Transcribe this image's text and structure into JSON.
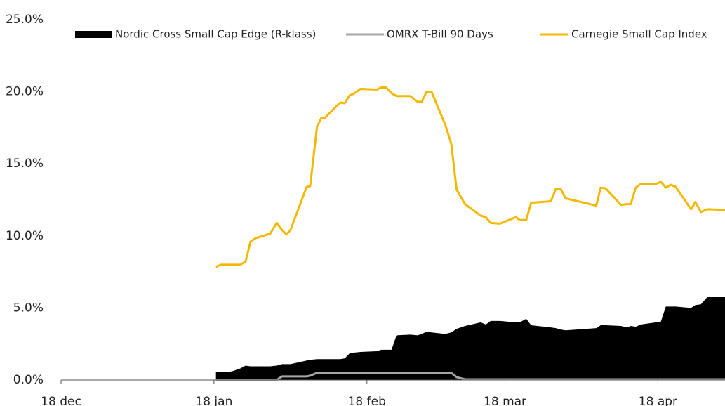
{
  "chart_data": {
    "type": "line",
    "legend": "top",
    "x": [
      31.4,
      32.4,
      34.6,
      36.3,
      37.4,
      38.4,
      39.5,
      42.4,
      43.7,
      44.8,
      45.7,
      46.5,
      49.8,
      50.5,
      51.9,
      52.8,
      53.5,
      56.6,
      57.5,
      58.5,
      59.3,
      60.7,
      64.0,
      64.9,
      65.9,
      67.0,
      68.0,
      70.8,
      72.3,
      73.1,
      74.1,
      75.1,
      77.9,
      79.1,
      80.2,
      81.9,
      85.1,
      86.1,
      87.1,
      89.0,
      92.2,
      93.0,
      94.3,
      95.3,
      99.3,
      100.3,
      101.3,
      102.3,
      108.5,
      109.4,
      110.4,
      113.5,
      114.7,
      115.5,
      116.5,
      117.5,
      120.6,
      121.6,
      122.6,
      123.6,
      124.6,
      127.7,
      128.6,
      129.7,
      131.0,
      134.6
    ],
    "series": [
      {
        "name": "Nordic Cross Small Cap Edge (R-klass)",
        "color": "#000000",
        "style": "area",
        "values": [
          0.55,
          0.55,
          0.6,
          0.8,
          1.0,
          0.95,
          0.95,
          0.95,
          1.0,
          1.1,
          1.1,
          1.1,
          1.35,
          1.4,
          1.45,
          1.45,
          1.45,
          1.45,
          1.5,
          1.85,
          1.9,
          1.95,
          2.0,
          2.1,
          2.1,
          2.1,
          3.1,
          3.15,
          3.1,
          3.2,
          3.35,
          3.3,
          3.2,
          3.3,
          3.55,
          3.75,
          4.0,
          3.85,
          4.1,
          4.1,
          4.0,
          4.0,
          4.25,
          3.8,
          3.65,
          3.6,
          3.5,
          3.45,
          3.6,
          3.8,
          3.8,
          3.75,
          3.65,
          3.75,
          3.7,
          3.85,
          4.0,
          4.05,
          5.1,
          5.1,
          5.1,
          5.0,
          5.2,
          5.25,
          5.75,
          5.75
        ]
      },
      {
        "name": "OMRX T-Bill 90 Days",
        "color": "#a6a6a6",
        "style": "line",
        "values": [
          0,
          0,
          0,
          0,
          0,
          0,
          0,
          0,
          0,
          0.25,
          0.25,
          0.25,
          0.25,
          0.3,
          0.5,
          0.5,
          0.5,
          0.5,
          0.5,
          0.5,
          0.5,
          0.5,
          0.5,
          0.5,
          0.5,
          0.5,
          0.5,
          0.5,
          0.5,
          0.5,
          0.5,
          0.5,
          0.5,
          0.5,
          0.2,
          0.05,
          0.05,
          0.05,
          0.05,
          0.05,
          0.05,
          0.05,
          0.05,
          0.05,
          0.05,
          0.05,
          0.05,
          0.05,
          0.05,
          0.05,
          0.05,
          0.05,
          0.05,
          0.05,
          0.05,
          0.05,
          0.05,
          0.05,
          0.05,
          0.05,
          0.05,
          0.05,
          0.05,
          0.05,
          0.05,
          0.05
        ]
      },
      {
        "name": "Carnegie Small Cap Index",
        "color": "#f5b800",
        "style": "line",
        "values": [
          7.85,
          8.0,
          8.0,
          8.0,
          8.2,
          9.6,
          9.85,
          10.15,
          10.9,
          10.4,
          10.1,
          10.4,
          13.4,
          13.45,
          17.6,
          18.2,
          18.2,
          19.25,
          19.2,
          19.75,
          19.85,
          20.2,
          20.15,
          20.3,
          20.3,
          19.9,
          19.7,
          19.7,
          19.3,
          19.3,
          20.0,
          20.0,
          17.7,
          16.4,
          13.2,
          12.2,
          11.4,
          11.3,
          10.9,
          10.85,
          11.3,
          11.1,
          11.1,
          12.3,
          12.4,
          13.25,
          13.25,
          12.6,
          12.1,
          13.35,
          13.3,
          12.15,
          12.2,
          12.2,
          13.35,
          13.6,
          13.6,
          13.75,
          13.35,
          13.55,
          13.4,
          11.85,
          12.35,
          11.65,
          11.85,
          11.8
        ]
      }
    ],
    "xlim": [
      0,
      134.6
    ],
    "xticks": [
      {
        "value": 0,
        "label": "18 dec"
      },
      {
        "value": 31,
        "label": "18 jan"
      },
      {
        "value": 62,
        "label": "18 feb"
      },
      {
        "value": 90,
        "label": "18 mar"
      },
      {
        "value": 121,
        "label": "18 apr"
      }
    ],
    "ylim": [
      0,
      25
    ],
    "yticks": [
      {
        "value": 0,
        "label": "0.0%"
      },
      {
        "value": 5,
        "label": "5.0%"
      },
      {
        "value": 10,
        "label": "10.0%"
      },
      {
        "value": 15,
        "label": "15.0%"
      },
      {
        "value": 20,
        "label": "20.0%"
      },
      {
        "value": 25,
        "label": "25.0%"
      }
    ],
    "grid": false
  }
}
